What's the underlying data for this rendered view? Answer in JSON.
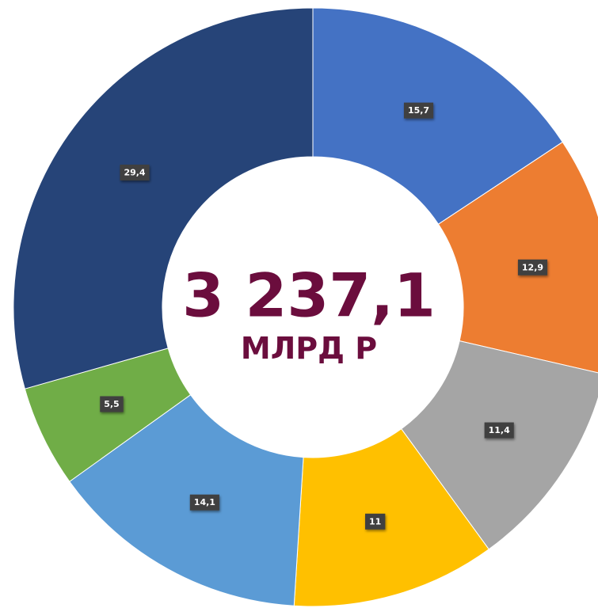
{
  "chart_data": {
    "type": "pie",
    "values": [
      15.7,
      12.9,
      11.4,
      11,
      14.1,
      5.5,
      29.4
    ],
    "value_labels": [
      "15,7",
      "12,9",
      "11,4",
      "11",
      "14,1",
      "5,5",
      "29,4"
    ],
    "colors": [
      "#4472c4",
      "#ed7d31",
      "#a5a5a5",
      "#ffc000",
      "#5b9bd5",
      "#70ad47",
      "#264478"
    ],
    "annotations": [
      "3 237,1",
      "МЛРД Р"
    ]
  }
}
